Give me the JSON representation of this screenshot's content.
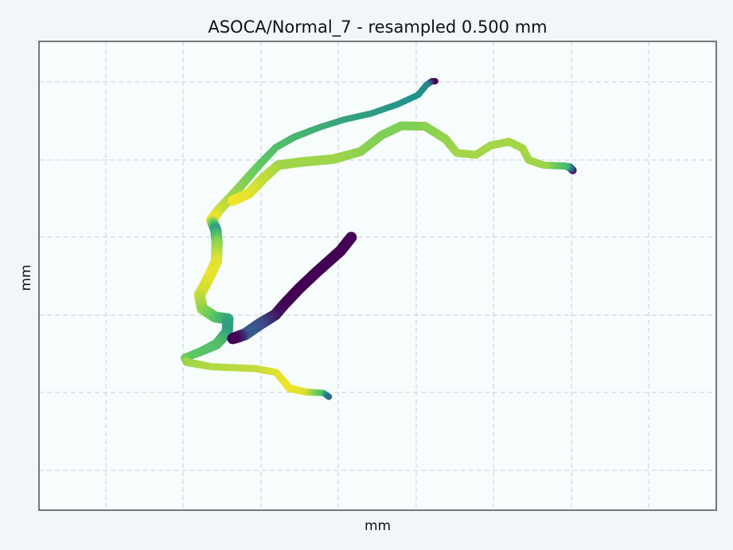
{
  "chart_data": {
    "type": "scatter",
    "title": "ASOCA/Normal_7 - resampled 0.500 mm",
    "xlabel": "mm",
    "ylabel": "mm",
    "xticks": [],
    "yticks": [],
    "xlim": [
      0,
      100
    ],
    "ylim": [
      0,
      100
    ],
    "grid": true,
    "legend": false,
    "colormap": "viridis",
    "colors": {
      "figure_bg": "#f2f5f9",
      "axes_bg": "#f7fcfc",
      "grid": "#c8d0d8",
      "spine": "#222222",
      "viridis": [
        "#440154",
        "#3b528b",
        "#21918c",
        "#5ec962",
        "#fde725"
      ]
    },
    "series": [
      {
        "points": [
          [
            58.5,
            91.5,
            0.8,
            0.0
          ],
          [
            58.0,
            91.5,
            0.8,
            0.02
          ],
          [
            57.2,
            90.7,
            0.8,
            0.45
          ],
          [
            56.0,
            88.6,
            0.8,
            0.5
          ],
          [
            53.0,
            86.6,
            0.8,
            0.52
          ],
          [
            49.0,
            84.6,
            0.8,
            0.55
          ],
          [
            45.0,
            83.3,
            0.8,
            0.58
          ],
          [
            41.5,
            81.7,
            0.8,
            0.62
          ],
          [
            37.7,
            79.6,
            0.9,
            0.66
          ],
          [
            35.0,
            77.4,
            0.9,
            0.7
          ],
          [
            32.6,
            73.8,
            1.0,
            0.74
          ],
          [
            31.0,
            71.2,
            1.1,
            0.78
          ],
          [
            28.6,
            67.2,
            1.2,
            0.84
          ],
          [
            26.5,
            63.9,
            1.3,
            0.92
          ],
          [
            25.5,
            61.9,
            1.4,
            0.98
          ],
          [
            26.1,
            59.8,
            1.4,
            0.55
          ],
          [
            26.3,
            57.1,
            1.4,
            0.8
          ],
          [
            26.2,
            53.1,
            1.4,
            0.95
          ],
          [
            25.0,
            49.4,
            1.4,
            0.97
          ],
          [
            23.7,
            45.9,
            1.4,
            0.92
          ],
          [
            24.1,
            43.0,
            1.4,
            0.85
          ],
          [
            26.0,
            41.2,
            1.4,
            0.75
          ],
          [
            27.9,
            40.8,
            1.4,
            0.6
          ],
          [
            27.8,
            38.0,
            1.4,
            0.55
          ],
          [
            26.2,
            35.4,
            1.3,
            0.7
          ],
          [
            24.0,
            33.9,
            1.1,
            0.72
          ],
          [
            21.5,
            32.5,
            1.0,
            0.75
          ],
          [
            21.8,
            31.6,
            1.0,
            0.85
          ],
          [
            25.5,
            30.6,
            0.9,
            0.88
          ],
          [
            32.0,
            30.2,
            0.9,
            0.9
          ],
          [
            35.0,
            29.4,
            0.9,
            0.95
          ],
          [
            37.0,
            26.0,
            1.0,
            0.98
          ],
          [
            39.5,
            25.2,
            0.9,
            0.95
          ],
          [
            42.0,
            25.0,
            0.8,
            0.7
          ],
          [
            42.8,
            24.2,
            0.8,
            0.35
          ]
        ]
      },
      {
        "points": [
          [
            78.8,
            72.5,
            1.0,
            0.05
          ],
          [
            78.4,
            73.1,
            1.0,
            0.3
          ],
          [
            77.8,
            73.4,
            0.9,
            0.65
          ],
          [
            74.5,
            73.6,
            0.9,
            0.85
          ],
          [
            72.3,
            74.7,
            1.0,
            0.85
          ],
          [
            71.4,
            77.2,
            1.0,
            0.86
          ],
          [
            69.4,
            78.6,
            1.0,
            0.86
          ],
          [
            66.7,
            77.8,
            1.0,
            0.86
          ],
          [
            64.5,
            75.8,
            1.0,
            0.86
          ],
          [
            61.7,
            76.2,
            1.0,
            0.86
          ],
          [
            60.0,
            79.2,
            1.1,
            0.84
          ],
          [
            57.0,
            81.9,
            1.1,
            0.82
          ],
          [
            53.5,
            82.0,
            1.1,
            0.8
          ],
          [
            50.6,
            80.0,
            1.1,
            0.8
          ],
          [
            47.5,
            76.5,
            1.1,
            0.82
          ],
          [
            43.5,
            74.9,
            1.2,
            0.85
          ],
          [
            38.9,
            74.3,
            1.2,
            0.85
          ],
          [
            35.3,
            73.6,
            1.2,
            0.85
          ],
          [
            33.2,
            70.9,
            1.3,
            0.9
          ],
          [
            31.0,
            67.6,
            1.3,
            0.95
          ],
          [
            28.6,
            66.0,
            1.3,
            0.98
          ]
        ]
      },
      {
        "points": [
          [
            46.1,
            58.2,
            1.4,
            0.02
          ],
          [
            44.5,
            55.3,
            1.4,
            0.0
          ],
          [
            41.0,
            50.8,
            1.4,
            0.0
          ],
          [
            38.5,
            47.4,
            1.4,
            0.0
          ],
          [
            36.2,
            43.9,
            1.4,
            0.0
          ],
          [
            34.9,
            41.7,
            1.4,
            0.05
          ],
          [
            32.6,
            39.7,
            1.5,
            0.22
          ],
          [
            30.4,
            37.5,
            1.5,
            0.3
          ],
          [
            29.6,
            37.1,
            1.5,
            0.12
          ],
          [
            28.6,
            36.6,
            1.4,
            0.0
          ]
        ]
      }
    ]
  }
}
